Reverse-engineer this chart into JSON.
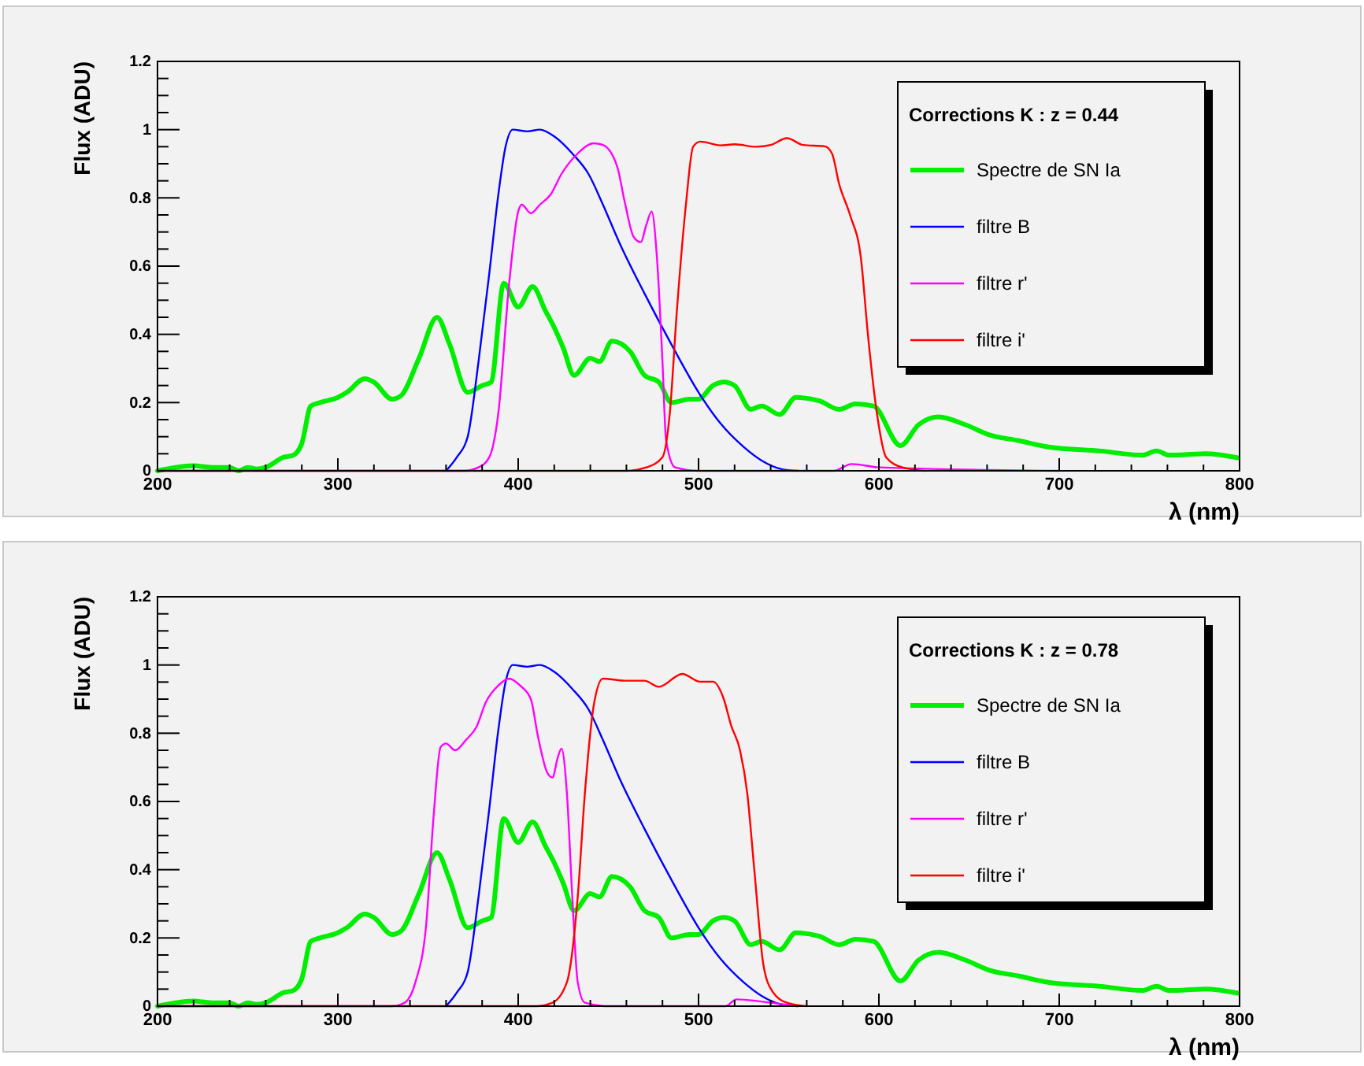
{
  "chart_data": [
    {
      "type": "line",
      "xlabel": "λ (nm)",
      "ylabel": "Flux (ADU)",
      "legend_title": "Corrections K : z = 0.44",
      "legend": "top right",
      "grid": false,
      "marker": "none",
      "line_style": "solid",
      "xlim": [
        200,
        800
      ],
      "ylim": [
        0,
        1.2
      ],
      "xticks": [
        200,
        {
          "value": 220,
          "label": null
        },
        {
          "value": 240,
          "label": null
        },
        {
          "value": 260,
          "label": null
        },
        {
          "value": 280,
          "label": null
        },
        300,
        {
          "value": 320,
          "label": null
        },
        {
          "value": 340,
          "label": null
        },
        {
          "value": 360,
          "label": null
        },
        {
          "value": 380,
          "label": null
        },
        400,
        {
          "value": 420,
          "label": null
        },
        {
          "value": 440,
          "label": null
        },
        {
          "value": 460,
          "label": null
        },
        {
          "value": 480,
          "label": null
        },
        500,
        {
          "value": 520,
          "label": null
        },
        {
          "value": 540,
          "label": null
        },
        {
          "value": 560,
          "label": null
        },
        {
          "value": 580,
          "label": null
        },
        600,
        {
          "value": 620,
          "label": null
        },
        {
          "value": 640,
          "label": null
        },
        {
          "value": 660,
          "label": null
        },
        {
          "value": 680,
          "label": null
        },
        700,
        {
          "value": 720,
          "label": null
        },
        {
          "value": 740,
          "label": null
        },
        {
          "value": 760,
          "label": null
        },
        {
          "value": 780,
          "label": null
        },
        800
      ],
      "yticks": [
        0,
        {
          "value": 0.05,
          "label": null
        },
        {
          "value": 0.1,
          "label": null
        },
        {
          "value": 0.15,
          "label": null
        },
        0.2,
        {
          "value": 0.25,
          "label": null
        },
        {
          "value": 0.3,
          "label": null
        },
        {
          "value": 0.35,
          "label": null
        },
        0.4,
        {
          "value": 0.45,
          "label": null
        },
        {
          "value": 0.5,
          "label": null
        },
        {
          "value": 0.55,
          "label": null
        },
        0.6,
        {
          "value": 0.65,
          "label": null
        },
        {
          "value": 0.7,
          "label": null
        },
        {
          "value": 0.75,
          "label": null
        },
        0.8,
        {
          "value": 0.85,
          "label": null
        },
        {
          "value": 0.9,
          "label": null
        },
        {
          "value": 0.95,
          "label": null
        },
        1,
        {
          "value": 1.05,
          "label": null
        },
        {
          "value": 1.1,
          "label": null
        },
        {
          "value": 1.15,
          "label": null
        },
        1.2
      ],
      "series": [
        {
          "name": "Spectre de SN Ia",
          "color": "#00ee00",
          "x": [
            200,
            210,
            220,
            230,
            240,
            245,
            250,
            255,
            260,
            270,
            275,
            280,
            285,
            290,
            300,
            305,
            315,
            320,
            330,
            335,
            345,
            355,
            362,
            372,
            380,
            385,
            392,
            400,
            408,
            415,
            420,
            425,
            431,
            440,
            445,
            452,
            462,
            470,
            478,
            485,
            495,
            500,
            508,
            514,
            520,
            529,
            535,
            545,
            554,
            567,
            578,
            587,
            597,
            612,
            622,
            633,
            648,
            662,
            677,
            694,
            723,
            746,
            754,
            761,
            781,
            799
          ],
          "values": [
            0,
            0.01,
            0.015,
            0.01,
            0.01,
            0,
            0.01,
            0.005,
            0.01,
            0.04,
            0.045,
            0.08,
            0.19,
            0.2,
            0.215,
            0.23,
            0.27,
            0.26,
            0.21,
            0.22,
            0.33,
            0.45,
            0.37,
            0.23,
            0.25,
            0.26,
            0.55,
            0.48,
            0.54,
            0.47,
            0.42,
            0.36,
            0.28,
            0.33,
            0.32,
            0.38,
            0.35,
            0.28,
            0.26,
            0.2,
            0.21,
            0.21,
            0.25,
            0.26,
            0.25,
            0.18,
            0.19,
            0.165,
            0.215,
            0.205,
            0.18,
            0.196,
            0.19,
            0.074,
            0.135,
            0.158,
            0.135,
            0.104,
            0.089,
            0.07,
            0.058,
            0.046,
            0.058,
            0.046,
            0.05,
            0.038
          ]
        },
        {
          "name": "filtre B",
          "color": "#0000ff",
          "x": [
            360,
            366,
            372,
            378,
            384,
            389,
            393,
            397,
            405,
            412,
            420,
            430,
            439,
            447,
            456,
            470,
            485,
            500,
            512,
            525,
            535,
            546,
            555
          ],
          "values": [
            0,
            0.04,
            0.1,
            0.32,
            0.58,
            0.81,
            0.95,
            1,
            0.995,
            1,
            0.98,
            0.93,
            0.87,
            0.78,
            0.67,
            0.52,
            0.37,
            0.23,
            0.14,
            0.07,
            0.03,
            0.005,
            0
          ]
        },
        {
          "name": "filtre r'",
          "color": "#ff00ff",
          "x": [
            200,
            370,
            378,
            384,
            389,
            395,
            400,
            402,
            407,
            412,
            418,
            424,
            433,
            442,
            447,
            455,
            459,
            464,
            468,
            471,
            474,
            477,
            480,
            482,
            487,
            500,
            575,
            585,
            600,
            700
          ],
          "values": [
            0,
            0,
            0.01,
            0.04,
            0.17,
            0.55,
            0.76,
            0.78,
            0.755,
            0.78,
            0.81,
            0.87,
            0.93,
            0.96,
            0.955,
            0.89,
            0.79,
            0.686,
            0.67,
            0.72,
            0.76,
            0.62,
            0.32,
            0.09,
            0.01,
            0,
            0,
            0.02,
            0.01,
            0
          ]
        },
        {
          "name": "filtre i'",
          "color": "#ff0000",
          "x": [
            200,
            460,
            471,
            480,
            484,
            488,
            493,
            497,
            501,
            512,
            520,
            532,
            540,
            549,
            558,
            570,
            574,
            578,
            584,
            590,
            594,
            599,
            604,
            613,
            625
          ],
          "values": [
            0,
            0,
            0.01,
            0.04,
            0.165,
            0.47,
            0.78,
            0.95,
            0.965,
            0.954,
            0.957,
            0.95,
            0.955,
            0.975,
            0.955,
            0.951,
            0.93,
            0.84,
            0.75,
            0.625,
            0.395,
            0.165,
            0.04,
            0.01,
            0
          ]
        }
      ]
    },
    {
      "type": "line",
      "xlabel": "λ (nm)",
      "ylabel": "Flux (ADU)",
      "legend_title": "Corrections K : z = 0.78",
      "legend": "top right",
      "grid": false,
      "marker": "none",
      "line_style": "solid",
      "xlim": [
        200,
        800
      ],
      "ylim": [
        0,
        1.2
      ],
      "xticks": [
        200,
        {
          "value": 220,
          "label": null
        },
        {
          "value": 240,
          "label": null
        },
        {
          "value": 260,
          "label": null
        },
        {
          "value": 280,
          "label": null
        },
        300,
        {
          "value": 320,
          "label": null
        },
        {
          "value": 340,
          "label": null
        },
        {
          "value": 360,
          "label": null
        },
        {
          "value": 380,
          "label": null
        },
        400,
        {
          "value": 420,
          "label": null
        },
        {
          "value": 440,
          "label": null
        },
        {
          "value": 460,
          "label": null
        },
        {
          "value": 480,
          "label": null
        },
        500,
        {
          "value": 520,
          "label": null
        },
        {
          "value": 540,
          "label": null
        },
        {
          "value": 560,
          "label": null
        },
        {
          "value": 580,
          "label": null
        },
        600,
        {
          "value": 620,
          "label": null
        },
        {
          "value": 640,
          "label": null
        },
        {
          "value": 660,
          "label": null
        },
        {
          "value": 680,
          "label": null
        },
        700,
        {
          "value": 720,
          "label": null
        },
        {
          "value": 740,
          "label": null
        },
        {
          "value": 760,
          "label": null
        },
        {
          "value": 780,
          "label": null
        },
        800
      ],
      "yticks": [
        0,
        {
          "value": 0.05,
          "label": null
        },
        {
          "value": 0.1,
          "label": null
        },
        {
          "value": 0.15,
          "label": null
        },
        0.2,
        {
          "value": 0.25,
          "label": null
        },
        {
          "value": 0.3,
          "label": null
        },
        {
          "value": 0.35,
          "label": null
        },
        0.4,
        {
          "value": 0.45,
          "label": null
        },
        {
          "value": 0.5,
          "label": null
        },
        {
          "value": 0.55,
          "label": null
        },
        0.6,
        {
          "value": 0.65,
          "label": null
        },
        {
          "value": 0.7,
          "label": null
        },
        {
          "value": 0.75,
          "label": null
        },
        0.8,
        {
          "value": 0.85,
          "label": null
        },
        {
          "value": 0.9,
          "label": null
        },
        {
          "value": 0.95,
          "label": null
        },
        1,
        {
          "value": 1.05,
          "label": null
        },
        {
          "value": 1.1,
          "label": null
        },
        {
          "value": 1.15,
          "label": null
        },
        1.2
      ],
      "series": [
        {
          "name": "Spectre de SN Ia",
          "color": "#00ee00",
          "x": [
            200,
            210,
            220,
            230,
            240,
            245,
            250,
            255,
            260,
            270,
            275,
            280,
            285,
            290,
            300,
            305,
            315,
            320,
            330,
            335,
            345,
            355,
            362,
            372,
            380,
            385,
            392,
            400,
            408,
            415,
            420,
            425,
            431,
            440,
            445,
            452,
            462,
            470,
            478,
            485,
            495,
            500,
            508,
            514,
            520,
            529,
            535,
            545,
            554,
            567,
            578,
            587,
            597,
            612,
            622,
            633,
            648,
            662,
            677,
            694,
            723,
            746,
            754,
            761,
            781,
            799
          ],
          "values": [
            0,
            0.01,
            0.015,
            0.01,
            0.01,
            0,
            0.01,
            0.005,
            0.01,
            0.04,
            0.045,
            0.08,
            0.19,
            0.2,
            0.215,
            0.23,
            0.27,
            0.26,
            0.21,
            0.22,
            0.33,
            0.45,
            0.37,
            0.23,
            0.25,
            0.26,
            0.55,
            0.48,
            0.54,
            0.47,
            0.42,
            0.36,
            0.28,
            0.33,
            0.32,
            0.38,
            0.35,
            0.28,
            0.26,
            0.2,
            0.21,
            0.21,
            0.25,
            0.26,
            0.25,
            0.18,
            0.19,
            0.165,
            0.215,
            0.205,
            0.18,
            0.196,
            0.19,
            0.074,
            0.135,
            0.158,
            0.135,
            0.104,
            0.089,
            0.07,
            0.058,
            0.046,
            0.058,
            0.046,
            0.05,
            0.038
          ]
        },
        {
          "name": "filtre B",
          "color": "#0000ff",
          "x": [
            360,
            366,
            372,
            378,
            384,
            389,
            393,
            397,
            405,
            412,
            420,
            430,
            439,
            447,
            456,
            470,
            485,
            500,
            512,
            525,
            535,
            546,
            555
          ],
          "values": [
            0,
            0.04,
            0.1,
            0.32,
            0.58,
            0.81,
            0.95,
            1,
            0.995,
            1,
            0.98,
            0.93,
            0.87,
            0.78,
            0.67,
            0.52,
            0.37,
            0.23,
            0.14,
            0.07,
            0.03,
            0.005,
            0
          ]
        },
        {
          "name": "filtre r'",
          "color": "#ff00ff",
          "x": [
            200,
            330,
            337,
            343,
            349,
            353,
            357,
            360,
            365,
            371,
            377,
            382,
            389,
            395,
            401,
            407,
            411,
            416,
            419,
            422,
            424,
            427,
            430,
            433,
            437,
            450,
            515,
            521,
            540,
            555
          ],
          "values": [
            0,
            0,
            0.01,
            0.07,
            0.24,
            0.55,
            0.76,
            0.77,
            0.75,
            0.78,
            0.82,
            0.89,
            0.94,
            0.96,
            0.94,
            0.9,
            0.79,
            0.686,
            0.67,
            0.73,
            0.755,
            0.625,
            0.32,
            0.07,
            0.01,
            0,
            0,
            0.02,
            0.01,
            0
          ]
        },
        {
          "name": "filtre i'",
          "color": "#ff0000",
          "x": [
            200,
            410,
            419,
            427,
            433,
            437,
            442,
            447,
            459,
            470,
            478,
            491,
            501,
            508,
            514,
            518,
            523,
            527,
            531,
            536,
            541,
            549,
            560
          ],
          "values": [
            0,
            0,
            0.01,
            0.07,
            0.32,
            0.625,
            0.885,
            0.96,
            0.954,
            0.954,
            0.936,
            0.974,
            0.951,
            0.951,
            0.9,
            0.824,
            0.75,
            0.625,
            0.395,
            0.12,
            0.043,
            0.01,
            0
          ]
        }
      ]
    }
  ]
}
